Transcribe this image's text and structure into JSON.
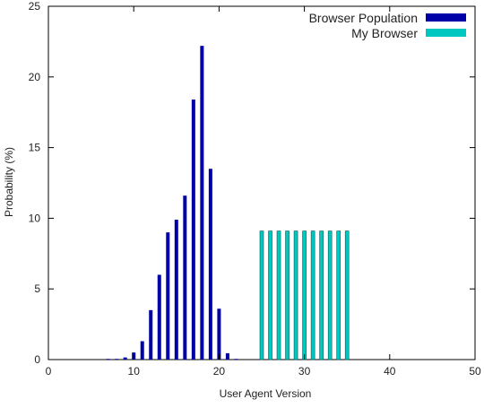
{
  "chart_data": {
    "type": "bar",
    "xlabel": "User Agent Version",
    "ylabel": "Probability (%)",
    "xlim": [
      0,
      50
    ],
    "ylim": [
      0,
      25
    ],
    "xticks": [
      0,
      10,
      20,
      30,
      40,
      50
    ],
    "yticks": [
      0,
      5,
      10,
      15,
      20,
      25
    ],
    "grid": false,
    "legend_position": "top-right",
    "series": [
      {
        "name": "Browser Population",
        "color": "#0000a8",
        "x": [
          7,
          8,
          9,
          10,
          11,
          12,
          13,
          14,
          15,
          16,
          17,
          18,
          19,
          20,
          21,
          22
        ],
        "values": [
          0.05,
          0.05,
          0.15,
          0.5,
          1.3,
          3.5,
          6.0,
          9.0,
          9.9,
          11.6,
          18.4,
          22.2,
          13.5,
          3.6,
          0.45,
          0.05
        ]
      },
      {
        "name": "My Browser",
        "color": "#00c8c0",
        "x": [
          25,
          26,
          27,
          28,
          29,
          30,
          31,
          32,
          33,
          34,
          35
        ],
        "values": [
          9.1,
          9.1,
          9.1,
          9.1,
          9.1,
          9.1,
          9.1,
          9.1,
          9.1,
          9.1,
          9.1
        ]
      }
    ]
  }
}
